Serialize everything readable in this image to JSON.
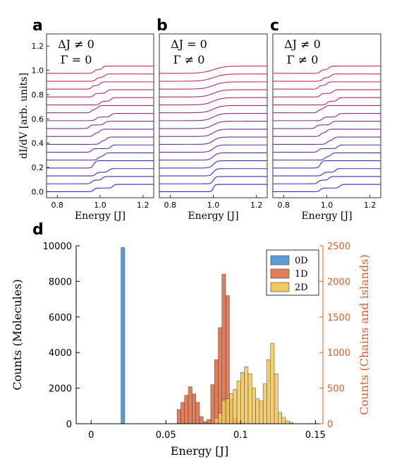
{
  "panels": {
    "a": {
      "letter": "a",
      "line1": "ΔJ ≠ 0",
      "line2": "Γ = 0"
    },
    "b": {
      "letter": "b",
      "line1": "ΔJ = 0",
      "line2": "Γ ≠ 0"
    },
    "c": {
      "letter": "c",
      "line1": "ΔJ ≠ 0",
      "line2": "Γ ≠ 0"
    },
    "d": {
      "letter": "d"
    }
  },
  "chart_data": [
    {
      "type": "line",
      "panel": "a",
      "xlabel": "Energy [J]",
      "ylabel": "dI/dV [arb. units]",
      "xlim": [
        0.75,
        1.25
      ],
      "ylim": [
        -0.05,
        1.3
      ],
      "xticks": [
        "0.8",
        "1.0",
        "1.2"
      ],
      "yticks": [
        "0.0",
        "0.2",
        "0.4",
        "0.6",
        "0.8",
        "1.0",
        "1.2"
      ],
      "n_curves": 16,
      "offset": 0.065,
      "step_height": 0.06,
      "color_start": "#2a2ad6",
      "color_end": "#d42a50",
      "step_pairs": [
        [
          0.97,
          1.06
        ],
        [
          0.96,
          1.01
        ],
        [
          0.98,
          1.04
        ],
        [
          0.97,
          0.97
        ],
        [
          0.99,
          1.02
        ],
        [
          0.96,
          1.05
        ],
        [
          1.0,
          1.03
        ],
        [
          0.97,
          1.0
        ],
        [
          0.95,
          1.02
        ],
        [
          0.98,
          1.05
        ],
        [
          0.96,
          0.99
        ],
        [
          1.0,
          1.05
        ],
        [
          0.97,
          1.03
        ],
        [
          0.96,
          1.0
        ],
        [
          0.98,
          1.02
        ],
        [
          0.97,
          1.01
        ]
      ]
    },
    {
      "type": "line",
      "panel": "b",
      "xlabel": "Energy [J]",
      "xlim": [
        0.75,
        1.25
      ],
      "ylim": [
        -0.05,
        1.3
      ],
      "xticks": [
        "0.8",
        "1.0",
        "1.2"
      ],
      "n_curves": 16,
      "offset": 0.065,
      "step_height": 0.06,
      "color_start": "#2a2ad6",
      "color_end": "#d42a50",
      "step_pairs": [
        [
          1.0,
          1.0
        ],
        [
          1.0,
          1.0
        ],
        [
          1.0,
          1.0
        ],
        [
          1.0,
          1.0
        ],
        [
          1.0,
          1.0
        ],
        [
          1.0,
          1.0
        ],
        [
          1.0,
          1.0
        ],
        [
          1.0,
          1.0
        ],
        [
          1.0,
          1.0
        ],
        [
          1.0,
          1.0
        ],
        [
          1.0,
          1.0
        ],
        [
          1.0,
          1.0
        ],
        [
          1.0,
          1.0
        ],
        [
          1.0,
          1.0
        ],
        [
          1.0,
          1.0
        ],
        [
          1.0,
          1.0
        ]
      ]
    },
    {
      "type": "line",
      "panel": "c",
      "xlabel": "Energy [J]",
      "xlim": [
        0.75,
        1.25
      ],
      "ylim": [
        -0.05,
        1.3
      ],
      "xticks": [
        "0.8",
        "1.0",
        "1.2"
      ],
      "n_curves": 16,
      "offset": 0.065,
      "step_height": 0.06,
      "color_start": "#2a2ad6",
      "color_end": "#d42a50",
      "step_pairs": [
        [
          0.97,
          1.06
        ],
        [
          0.96,
          1.01
        ],
        [
          0.98,
          1.04
        ],
        [
          0.97,
          0.97
        ],
        [
          0.99,
          1.02
        ],
        [
          0.96,
          1.05
        ],
        [
          1.0,
          1.03
        ],
        [
          0.97,
          1.0
        ],
        [
          0.95,
          1.02
        ],
        [
          0.98,
          1.05
        ],
        [
          0.96,
          0.99
        ],
        [
          1.0,
          1.05
        ],
        [
          0.97,
          1.03
        ],
        [
          0.96,
          1.0
        ],
        [
          0.98,
          1.02
        ],
        [
          0.97,
          1.01
        ]
      ]
    },
    {
      "type": "bar",
      "panel": "d",
      "xlabel": "Energy [J]",
      "ylabel": "Counts (Molecules)",
      "y2label": "Counts (Chains and islands)",
      "xlim": [
        -0.01,
        0.155
      ],
      "ylim": [
        0,
        10000
      ],
      "y2lim": [
        0,
        2500
      ],
      "xticks": [
        "0",
        "0.05",
        "0.1",
        "0.15"
      ],
      "yticks": [
        "0",
        "2000",
        "4000",
        "6000",
        "8000",
        "10000"
      ],
      "y2ticks": [
        "0",
        "500",
        "1000",
        "1500",
        "2000",
        "2500"
      ],
      "legend_position": "top-right",
      "bin_width": 0.0025,
      "series": [
        {
          "name": "0D",
          "axis": "left",
          "color": "#5b9bd5",
          "edges": [
            0.02
          ],
          "counts": [
            9900
          ]
        },
        {
          "name": "1D",
          "axis": "right",
          "color": "#e07f5a",
          "edges": [
            0.0575,
            0.06,
            0.0625,
            0.065,
            0.0675,
            0.07,
            0.0725,
            0.075,
            0.0775,
            0.08,
            0.0825,
            0.085,
            0.0875,
            0.09,
            0.0925,
            0.095,
            0.0975,
            0.1
          ],
          "counts": [
            200,
            300,
            400,
            520,
            420,
            300,
            100,
            30,
            60,
            550,
            900,
            1350,
            2100,
            1800,
            350,
            80,
            20,
            10
          ]
        },
        {
          "name": "2D",
          "axis": "right",
          "color": "#f1c85a",
          "edges": [
            0.0825,
            0.085,
            0.0875,
            0.09,
            0.0925,
            0.095,
            0.0975,
            0.1,
            0.1025,
            0.105,
            0.1075,
            0.11,
            0.1125,
            0.115,
            0.1175,
            0.12,
            0.1225,
            0.125,
            0.1275,
            0.13,
            0.1325
          ],
          "counts": [
            80,
            150,
            330,
            350,
            420,
            480,
            600,
            720,
            800,
            700,
            500,
            350,
            320,
            560,
            900,
            1130,
            700,
            160,
            90,
            40,
            20
          ]
        }
      ]
    }
  ]
}
